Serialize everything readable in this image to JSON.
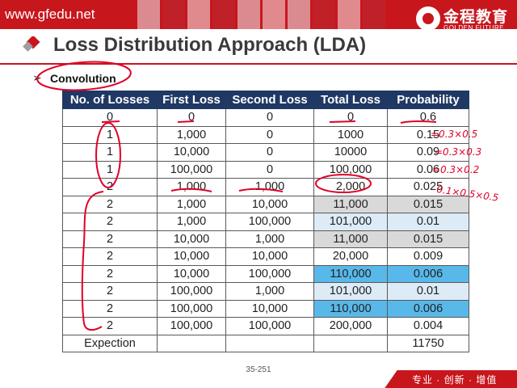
{
  "site": "www.gfedu.net",
  "logo": {
    "cn": "金程教育",
    "en": "GOLDEN FUTURE"
  },
  "title": "Loss Distribution Approach (LDA)",
  "bullet": "Convolution",
  "table": {
    "headers": [
      "No. of Losses",
      "First Loss",
      "Second Loss",
      "Total Loss",
      "Probability"
    ],
    "rows": [
      [
        "0",
        "0",
        "0",
        "0",
        "0.6"
      ],
      [
        "1",
        "1,000",
        "0",
        "1000",
        "0.15"
      ],
      [
        "1",
        "10,000",
        "0",
        "10000",
        "0.09"
      ],
      [
        "1",
        "100,000",
        "0",
        "100,000",
        "0.06"
      ],
      [
        "2",
        "1,000",
        "1,000",
        "2,000",
        "0.025"
      ],
      [
        "2",
        "1,000",
        "10,000",
        "11,000",
        "0.015"
      ],
      [
        "2",
        "1,000",
        "100,000",
        "101,000",
        "0.01"
      ],
      [
        "2",
        "10,000",
        "1,000",
        "11,000",
        "0.015"
      ],
      [
        "2",
        "10,000",
        "10,000",
        "20,000",
        "0.009"
      ],
      [
        "2",
        "10,000",
        "100,000",
        "110,000",
        "0.006"
      ],
      [
        "2",
        "100,000",
        "1,000",
        "101,000",
        "0.01"
      ],
      [
        "2",
        "100,000",
        "10,000",
        "110,000",
        "0.006"
      ],
      [
        "2",
        "100,000",
        "100,000",
        "200,000",
        "0.004"
      ]
    ],
    "footer": [
      "Expection",
      "",
      "",
      "",
      "11750"
    ],
    "highlight": [
      "",
      "",
      "",
      "",
      "",
      "gray",
      "light",
      "gray",
      "",
      "blue",
      "light",
      "blue",
      ""
    ]
  },
  "annotations": [
    "=0.3×0.5",
    "=0.3×0.3",
    "=0.3×0.2",
    "0.1×0.5×0.5"
  ],
  "page_number": "35-251",
  "slogan": "专业 · 创新 · 增值",
  "colors": {
    "brand_red": "#c8161d",
    "header_navy": "#1f3864",
    "ink_red": "#e0002a",
    "gray": "#d9d9d9",
    "light_blue": "#ddebf7",
    "blue": "#59b8ea"
  }
}
